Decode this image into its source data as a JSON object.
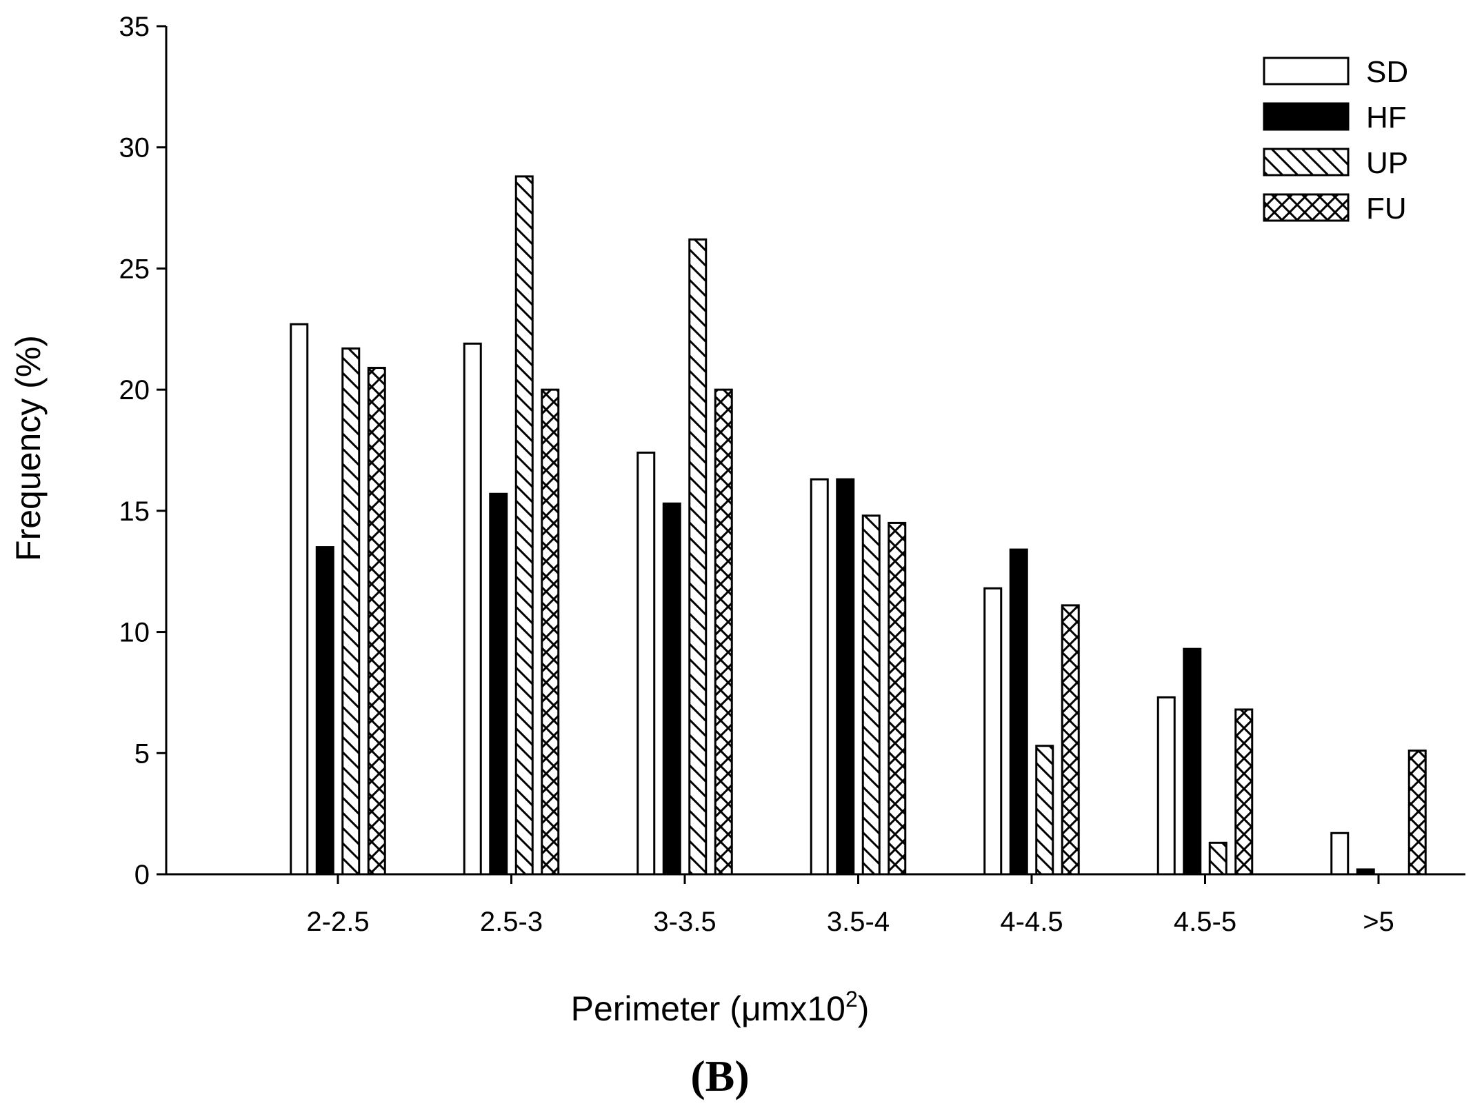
{
  "chart_data": {
    "type": "bar",
    "xlabel": "Perimeter (",
    "xlabel_unit": "μmx10",
    "xlabel_sup": "2",
    "xlabel_end": ")",
    "ylabel": "Frequency (%)",
    "panel_label": "(B)",
    "ylim": [
      0,
      35
    ],
    "yticks": [
      "0",
      "5",
      "10",
      "15",
      "20",
      "25",
      "30",
      "35"
    ],
    "categories": [
      "2-2.5",
      "2.5-3",
      "3-3.5",
      "3.5-4",
      "4-4.5",
      "4.5-5",
      ">5"
    ],
    "legend_position": "top-right",
    "grid": false,
    "series": [
      {
        "name": "SD",
        "fill": "white",
        "values": [
          22.7,
          21.9,
          17.4,
          16.3,
          11.8,
          7.3,
          1.7
        ]
      },
      {
        "name": "HF",
        "fill": "black",
        "values": [
          13.5,
          15.7,
          15.3,
          16.3,
          13.4,
          9.3,
          0.2
        ]
      },
      {
        "name": "UP",
        "fill": "diagonal-hatch",
        "values": [
          21.7,
          28.8,
          26.2,
          14.8,
          5.3,
          1.3,
          0
        ]
      },
      {
        "name": "FU",
        "fill": "cross-hatch",
        "values": [
          20.9,
          20.0,
          20.0,
          14.5,
          11.1,
          6.8,
          5.1
        ]
      }
    ]
  }
}
